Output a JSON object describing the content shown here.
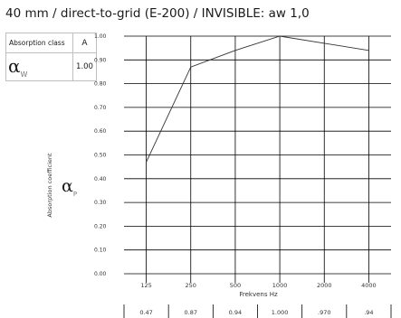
{
  "header": {
    "title": "40 mm / direct-to-grid (E-200) / INVISIBLE: aw 1,0"
  },
  "legend": {
    "class_label": "Absorption class",
    "class_value": "A",
    "alpha_w_symbol": "α",
    "alpha_w_sub": "W",
    "alpha_w_value": "1.00"
  },
  "alpha_p": {
    "symbol": "α",
    "sub": "P"
  },
  "chart_data": {
    "type": "line",
    "title": "",
    "xlabel": "Frekvens Hz",
    "ylabel": "Absorption coefficient",
    "categories": [
      "125",
      "250",
      "500",
      "1000",
      "2000",
      "4000"
    ],
    "values": [
      0.47,
      0.87,
      0.94,
      1.0,
      0.97,
      0.94
    ],
    "value_labels": [
      "0.47",
      "0.87",
      "0.94",
      "1.000",
      ".970",
      ".94"
    ],
    "yticks": [
      "0.00",
      "0.10",
      "0.20",
      "0.30",
      "0.40",
      "0.50",
      "0.60",
      "0.70",
      "0.80",
      "0.90",
      "1.00"
    ],
    "ylim": [
      0,
      1
    ],
    "grid": true,
    "line_color": "#333333",
    "grid_color": "#000000"
  }
}
